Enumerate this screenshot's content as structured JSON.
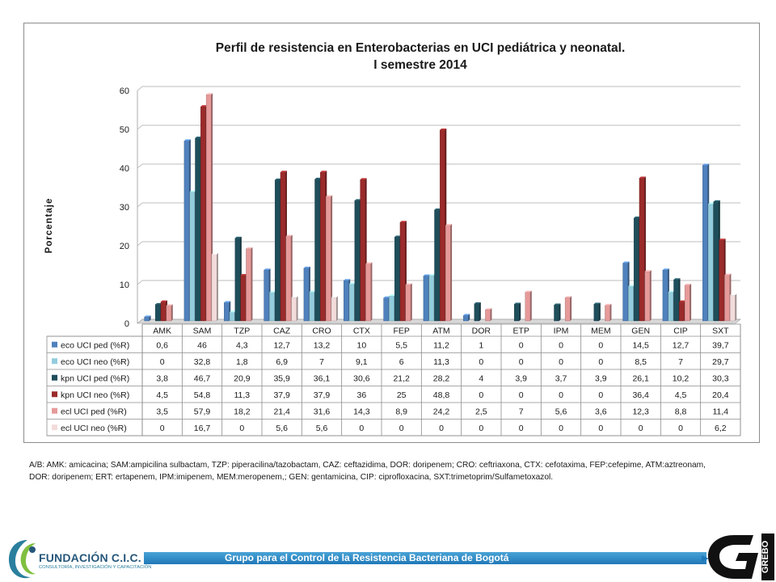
{
  "colors": {
    "eco_ped": "#4f81bd",
    "eco_neo": "#93cddd",
    "kpn_ped": "#1f4e5b",
    "kpn_neo": "#9b2b2b",
    "ecl_ped": "#e69a9a",
    "ecl_neo": "#f2dcdb",
    "banner": "#2b8ac8",
    "org": "#26577a"
  },
  "chart_data": {
    "type": "bar",
    "title_line1": "Perfil de resistencia en Enterobacterias en UCI pediátrica y neonatal.",
    "title_line2": "I semestre 2014",
    "ylabel": "Porcentaje",
    "ylim": [
      0,
      60
    ],
    "yticks": [
      "0",
      "10",
      "20",
      "30",
      "40",
      "50",
      "60"
    ],
    "grid": true,
    "legend": "data-table",
    "categories": [
      "AMK",
      "SAM",
      "TZP",
      "CAZ",
      "CRO",
      "CTX",
      "FEP",
      "ATM",
      "DOR",
      "ETP",
      "IPM",
      "MEM",
      "GEN",
      "CIP",
      "SXT"
    ],
    "series": [
      {
        "name": "eco UCI ped (%R)",
        "values": [
          0.6,
          46,
          4.3,
          12.7,
          13.2,
          10,
          5.5,
          11.2,
          1,
          0,
          0,
          0,
          14.5,
          12.7,
          39.7
        ],
        "labels": [
          "0,6",
          "46",
          "4,3",
          "12,7",
          "13,2",
          "10",
          "5,5",
          "11,2",
          "1",
          "0",
          "0",
          "0",
          "14,5",
          "12,7",
          "39,7"
        ]
      },
      {
        "name": "eco UCI neo (%R)",
        "values": [
          0,
          32.8,
          1.8,
          6.9,
          7,
          9.1,
          6,
          11.3,
          0,
          0,
          0,
          0,
          8.5,
          7,
          29.7
        ],
        "labels": [
          "0",
          "32,8",
          "1,8",
          "6,9",
          "7",
          "9,1",
          "6",
          "11,3",
          "0",
          "0",
          "0",
          "0",
          "8,5",
          "7",
          "29,7"
        ]
      },
      {
        "name": "kpn UCI ped (%R)",
        "values": [
          3.8,
          46.7,
          20.9,
          35.9,
          36.1,
          30.6,
          21.2,
          28.2,
          4,
          3.9,
          3.7,
          3.9,
          26.1,
          10.2,
          30.3
        ],
        "labels": [
          "3,8",
          "46,7",
          "20,9",
          "35,9",
          "36,1",
          "30,6",
          "21,2",
          "28,2",
          "4",
          "3,9",
          "3,7",
          "3,9",
          "26,1",
          "10,2",
          "30,3"
        ]
      },
      {
        "name": "kpn UCI neo (%R)",
        "values": [
          4.5,
          54.8,
          11.3,
          37.9,
          37.9,
          36,
          25,
          48.8,
          0,
          0,
          0,
          0,
          36.4,
          4.5,
          20.4
        ],
        "labels": [
          "4,5",
          "54,8",
          "11,3",
          "37,9",
          "37,9",
          "36",
          "25",
          "48,8",
          "0",
          "0",
          "0",
          "0",
          "36,4",
          "4,5",
          "20,4"
        ]
      },
      {
        "name": "ecl UCI ped (%R)",
        "values": [
          3.5,
          57.9,
          18.2,
          21.4,
          31.6,
          14.3,
          8.9,
          24.2,
          2.5,
          7,
          5.6,
          3.6,
          12.3,
          8.8,
          11.4
        ],
        "labels": [
          "3,5",
          "57,9",
          "18,2",
          "21,4",
          "31,6",
          "14,3",
          "8,9",
          "24,2",
          "2,5",
          "7",
          "5,6",
          "3,6",
          "12,3",
          "8,8",
          "11,4"
        ]
      },
      {
        "name": "ecl UCI neo (%R)",
        "values": [
          0,
          16.7,
          0,
          5.6,
          5.6,
          0,
          0,
          0,
          0,
          0,
          0,
          0,
          0,
          0,
          6.2
        ],
        "labels": [
          "0",
          "16,7",
          "0",
          "5,6",
          "5,6",
          "0",
          "0",
          "0",
          "0",
          "0",
          "0",
          "0",
          "0",
          "0",
          "6,2"
        ]
      }
    ]
  },
  "footnote": {
    "line1": "A/B: AMK: amicacina; SAM:ampicilina sulbactam, TZP: piperacilina/tazobactam, CAZ: ceftazidima, DOR: doripenem; CRO: ceftriaxona, CTX: cefotaxima, FEP:cefepime,   ATM:aztreonam,",
    "line2": "DOR: doripenem; ERT: ertapenem, IPM:imipenem, MEM:meropenem,; GEN: gentamicina, CIP: ciprofloxacina, SXT:trimetoprim/Sulfametoxazol."
  },
  "footer": {
    "org_name": "FUNDACIÓN C.I.C. SALUD",
    "org_sub": "CONSULTORÍA, INVESTIGACIÓN Y CAPACITACIÓN",
    "banner_text": "Grupo para el Control de la Resistencia Bacteriana de Bogotá",
    "right_logo_text": "GREBO"
  }
}
